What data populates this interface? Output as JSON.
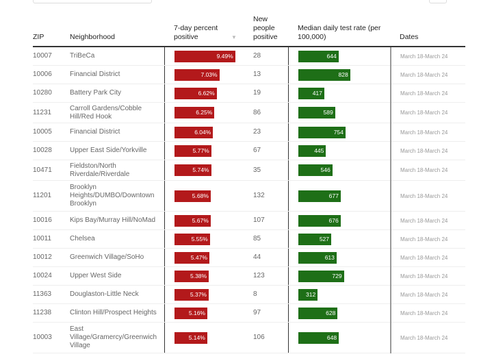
{
  "colors": {
    "percent_bar": "#b3191b",
    "rate_bar": "#1e6f17"
  },
  "headers": {
    "zip": "ZIP",
    "neighborhood": "Neighborhood",
    "percent": "7-day percent positive",
    "sort_icon": "▼",
    "new": "New people positive",
    "rate": "Median daily test rate (per 100,000)",
    "dates": "Dates"
  },
  "rows": [
    {
      "zip": "10007",
      "neighborhood": "TriBeCa",
      "percent": 9.49,
      "percent_label": "9.49%",
      "new": "28",
      "rate": 644,
      "rate_label": "644",
      "dates": "March 18-March 24",
      "lines": 1
    },
    {
      "zip": "10006",
      "neighborhood": "Financial District",
      "percent": 7.03,
      "percent_label": "7.03%",
      "new": "13",
      "rate": 828,
      "rate_label": "828",
      "dates": "March 18-March 24",
      "lines": 1
    },
    {
      "zip": "10280",
      "neighborhood": "Battery Park City",
      "percent": 6.62,
      "percent_label": "6.62%",
      "new": "19",
      "rate": 417,
      "rate_label": "417",
      "dates": "March 18-March 24",
      "lines": 1
    },
    {
      "zip": "11231",
      "neighborhood": "Carroll Gardens/Cobble Hill/Red Hook",
      "percent": 6.25,
      "percent_label": "6.25%",
      "new": "86",
      "rate": 589,
      "rate_label": "589",
      "dates": "March 18-March 24",
      "lines": 2
    },
    {
      "zip": "10005",
      "neighborhood": "Financial District",
      "percent": 6.04,
      "percent_label": "6.04%",
      "new": "23",
      "rate": 754,
      "rate_label": "754",
      "dates": "March 18-March 24",
      "lines": 1
    },
    {
      "zip": "10028",
      "neighborhood": "Upper East Side/Yorkville",
      "percent": 5.77,
      "percent_label": "5.77%",
      "new": "67",
      "rate": 445,
      "rate_label": "445",
      "dates": "March 18-March 24",
      "lines": 1
    },
    {
      "zip": "10471",
      "neighborhood": "Fieldston/North Riverdale/Riverdale",
      "percent": 5.74,
      "percent_label": "5.74%",
      "new": "35",
      "rate": 546,
      "rate_label": "546",
      "dates": "March 18-March 24",
      "lines": 2
    },
    {
      "zip": "11201",
      "neighborhood": "Brooklyn Heights/DUMBO/Downtown Brooklyn",
      "percent": 5.68,
      "percent_label": "5.68%",
      "new": "132",
      "rate": 677,
      "rate_label": "677",
      "dates": "March 18-March 24",
      "lines": 3
    },
    {
      "zip": "10016",
      "neighborhood": "Kips Bay/Murray Hill/NoMad",
      "percent": 5.67,
      "percent_label": "5.67%",
      "new": "107",
      "rate": 676,
      "rate_label": "676",
      "dates": "March 18-March 24",
      "lines": 1
    },
    {
      "zip": "10011",
      "neighborhood": "Chelsea",
      "percent": 5.55,
      "percent_label": "5.55%",
      "new": "85",
      "rate": 527,
      "rate_label": "527",
      "dates": "March 18-March 24",
      "lines": 1
    },
    {
      "zip": "10012",
      "neighborhood": "Greenwich Village/SoHo",
      "percent": 5.47,
      "percent_label": "5.47%",
      "new": "44",
      "rate": 613,
      "rate_label": "613",
      "dates": "March 18-March 24",
      "lines": 1
    },
    {
      "zip": "10024",
      "neighborhood": "Upper West Side",
      "percent": 5.38,
      "percent_label": "5.38%",
      "new": "123",
      "rate": 729,
      "rate_label": "729",
      "dates": "March 18-March 24",
      "lines": 1
    },
    {
      "zip": "11363",
      "neighborhood": "Douglaston-Little Neck",
      "percent": 5.37,
      "percent_label": "5.37%",
      "new": "8",
      "rate": 312,
      "rate_label": "312",
      "dates": "March 18-March 24",
      "lines": 1
    },
    {
      "zip": "11238",
      "neighborhood": "Clinton Hill/Prospect Heights",
      "percent": 5.16,
      "percent_label": "5.16%",
      "new": "97",
      "rate": 628,
      "rate_label": "628",
      "dates": "March 18-March 24",
      "lines": 1
    },
    {
      "zip": "10003",
      "neighborhood": "East Village/Gramercy/Greenwich Village",
      "percent": 5.14,
      "percent_label": "5.14%",
      "new": "106",
      "rate": 648,
      "rate_label": "648",
      "dates": "March 18-March 24",
      "lines": 3
    }
  ]
}
